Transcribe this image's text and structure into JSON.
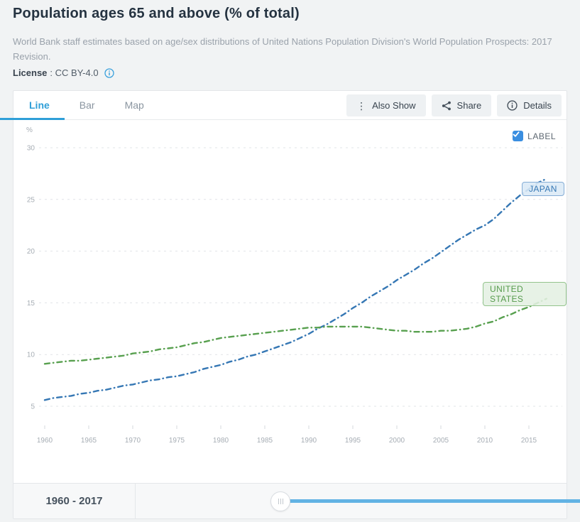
{
  "page": {
    "title": "Population ages 65 and above (% of total)",
    "subtitle": "World Bank staff estimates based on age/sex distributions of United Nations Population Division's World Population Prospects: 2017 Revision.",
    "license_label": "License",
    "license_value": ": CC BY-4.0"
  },
  "tabs": [
    {
      "label": "Line",
      "active": true
    },
    {
      "label": "Bar",
      "active": false
    },
    {
      "label": "Map",
      "active": false
    }
  ],
  "toolbar": {
    "also_show_label": "Also Show",
    "share_label": "Share",
    "details_label": "Details"
  },
  "chart_controls": {
    "label_checkbox_text": "LABEL",
    "label_checkbox_checked": true
  },
  "footer": {
    "range_label": "1960 - 2017"
  },
  "colors": {
    "accent_blue": "#2f9fd8",
    "checkbox_blue": "#3a8ee0",
    "slider_blue": "#62b3e4",
    "japan_line": "#3577b4",
    "us_line": "#58a04f",
    "grid": "#e1e4e7",
    "axis_text": "#a6adb4"
  },
  "chart_data": {
    "type": "line",
    "title": "Population ages 65 and above (% of total)",
    "xlabel": "",
    "ylabel": "%",
    "grid": true,
    "legend_position": "inline-labels",
    "xlim": [
      1959,
      2018.5
    ],
    "ylim": [
      3.5,
      31.5
    ],
    "yticks": [
      5,
      10,
      15,
      20,
      25,
      30
    ],
    "xticks": [
      1960,
      1965,
      1970,
      1975,
      1980,
      1985,
      1990,
      1995,
      2000,
      2005,
      2010,
      2015
    ],
    "x": [
      1960,
      1961,
      1962,
      1963,
      1964,
      1965,
      1966,
      1967,
      1968,
      1969,
      1970,
      1971,
      1972,
      1973,
      1974,
      1975,
      1976,
      1977,
      1978,
      1979,
      1980,
      1981,
      1982,
      1983,
      1984,
      1985,
      1986,
      1987,
      1988,
      1989,
      1990,
      1991,
      1992,
      1993,
      1994,
      1995,
      1996,
      1997,
      1998,
      1999,
      2000,
      2001,
      2002,
      2003,
      2004,
      2005,
      2006,
      2007,
      2008,
      2009,
      2010,
      2011,
      2012,
      2013,
      2014,
      2015,
      2016,
      2017
    ],
    "series": [
      {
        "name": "JAPAN",
        "color": "#3577b4",
        "values": [
          5.6,
          5.8,
          5.9,
          6.0,
          6.2,
          6.3,
          6.5,
          6.6,
          6.8,
          7.0,
          7.1,
          7.3,
          7.5,
          7.6,
          7.8,
          7.9,
          8.1,
          8.3,
          8.6,
          8.8,
          9.0,
          9.3,
          9.5,
          9.8,
          10.0,
          10.3,
          10.6,
          10.9,
          11.2,
          11.6,
          12.0,
          12.5,
          12.9,
          13.4,
          13.9,
          14.5,
          15.0,
          15.6,
          16.1,
          16.6,
          17.2,
          17.7,
          18.2,
          18.8,
          19.3,
          19.9,
          20.5,
          21.1,
          21.6,
          22.1,
          22.5,
          23.1,
          23.9,
          24.7,
          25.4,
          26.0,
          26.6,
          27.0
        ]
      },
      {
        "name": "UNITED STATES",
        "color": "#58a04f",
        "values": [
          9.1,
          9.2,
          9.3,
          9.4,
          9.4,
          9.5,
          9.6,
          9.7,
          9.8,
          9.9,
          10.1,
          10.2,
          10.3,
          10.5,
          10.6,
          10.7,
          10.9,
          11.1,
          11.2,
          11.4,
          11.6,
          11.7,
          11.8,
          11.9,
          12.0,
          12.1,
          12.2,
          12.3,
          12.4,
          12.5,
          12.6,
          12.6,
          12.7,
          12.7,
          12.7,
          12.7,
          12.7,
          12.6,
          12.5,
          12.4,
          12.3,
          12.3,
          12.2,
          12.2,
          12.2,
          12.3,
          12.3,
          12.4,
          12.5,
          12.7,
          13.0,
          13.2,
          13.6,
          13.9,
          14.3,
          14.6,
          15.0,
          15.4
        ]
      }
    ]
  }
}
